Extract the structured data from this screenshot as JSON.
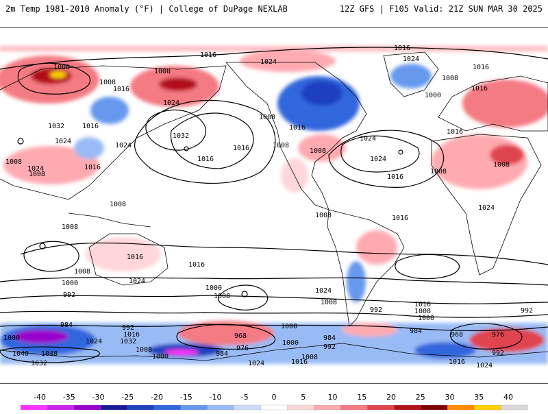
{
  "header": {
    "title_left": "2m Temp 1981-2010 Anomaly (°F) | College of DuPage NEXLAB",
    "title_right": "12Z GFS | F105 Valid: 21Z SUN MAR 30 2025"
  },
  "colorbar": {
    "ticks": [
      "-40",
      "-35",
      "-30",
      "-25",
      "-20",
      "-15",
      "-10",
      "-5",
      "0",
      "5",
      "10",
      "15",
      "20",
      "25",
      "30",
      "35",
      "40"
    ],
    "colors": [
      "#ff33ff",
      "#cc22ee",
      "#9900cc",
      "#1a1a99",
      "#1f3fbf",
      "#3366dd",
      "#6699ee",
      "#99bbf5",
      "#ccdcfa",
      "#ffffff",
      "#ffd6d9",
      "#ffaab0",
      "#f47a83",
      "#e04450",
      "#b3111c",
      "#800000",
      "#ff8c00",
      "#ffd000",
      "#d9d9d9"
    ]
  },
  "map": {
    "land_color": "#ffffff",
    "coastline_color": "#000000",
    "isobar_color": "#000000",
    "isobar_labels": [
      "1016",
      "1024",
      "1016",
      "1000",
      "1008",
      "1024",
      "1016",
      "1016",
      "1024",
      "1000",
      "1008",
      "1016",
      "1008",
      "1008",
      "1016",
      "1032",
      "1016",
      "1024",
      "1024",
      "1032",
      "1016",
      "1008",
      "1016",
      "1008",
      "1024",
      "1016",
      "1024",
      "1024",
      "1016",
      "1016",
      "1008",
      "1008",
      "1008",
      "1008",
      "1008",
      "1008",
      "1008",
      "1016",
      "1024",
      "1016",
      "1008",
      "1024",
      "1016",
      "1000",
      "1008",
      "992",
      "1000",
      "992",
      "1024",
      "1008",
      "992",
      "1016",
      "1008",
      "1000",
      "984",
      "992",
      "1016",
      "1024",
      "1032",
      "1008",
      "1000",
      "968",
      "984",
      "976",
      "1000",
      "992",
      "984",
      "1000",
      "984",
      "968",
      "976",
      "992",
      "1040",
      "1048",
      "1032",
      "1024",
      "1016",
      "1008",
      "1016",
      "1024",
      "1000"
    ]
  }
}
